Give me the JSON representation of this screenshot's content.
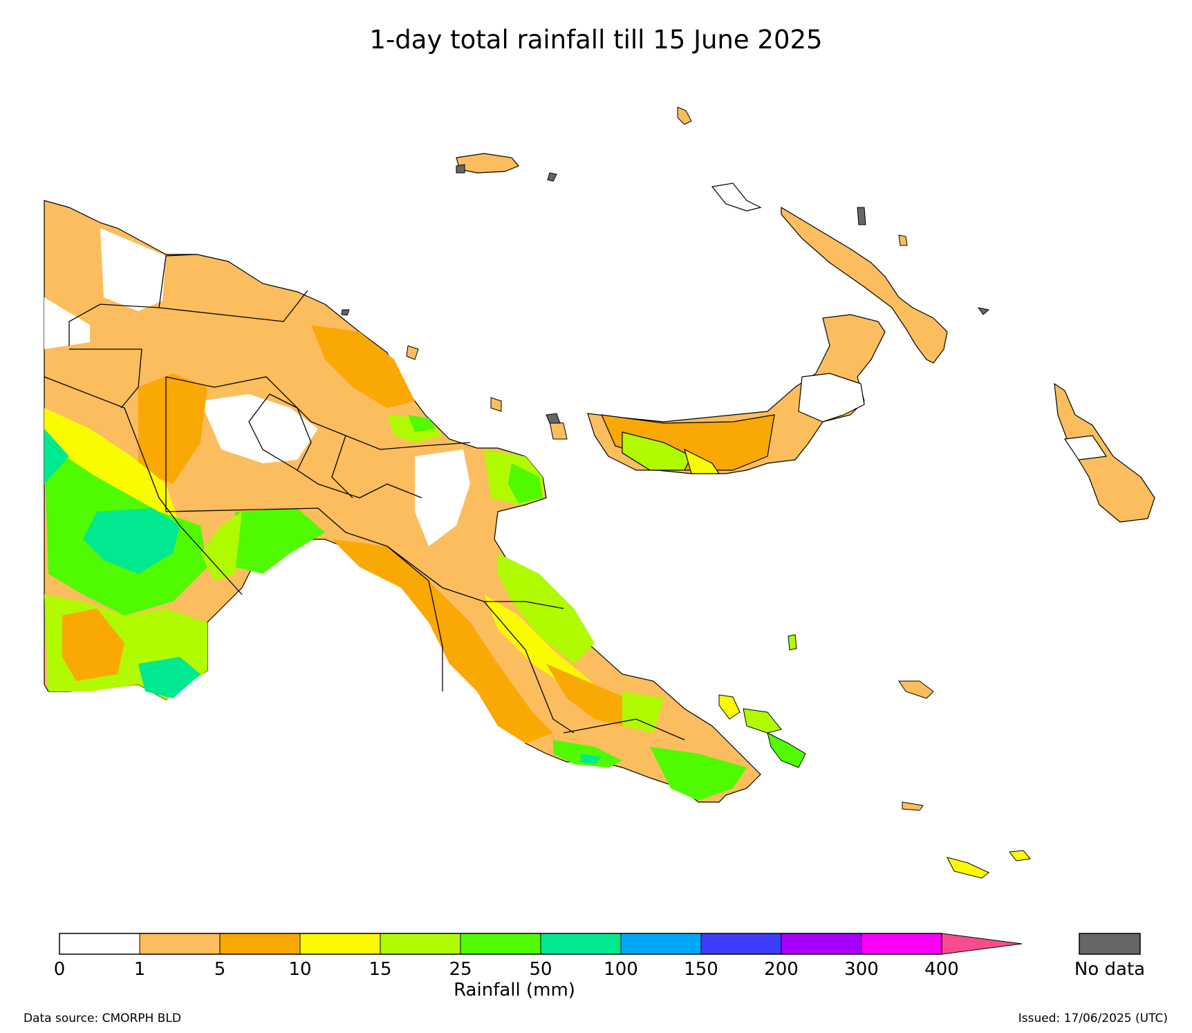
{
  "title": "1-day total rainfall till 15 June 2025",
  "legend": {
    "label": "Rainfall (mm)",
    "ticks": [
      "0",
      "1",
      "5",
      "10",
      "15",
      "25",
      "50",
      "100",
      "150",
      "200",
      "300",
      "400"
    ],
    "colors": [
      "#ffffff",
      "#fbbd5d",
      "#faa804",
      "#fafa00",
      "#b0fa02",
      "#50fa00",
      "#00e890",
      "#00a8fa",
      "#3c3cfa",
      "#a800fa",
      "#fa00fa",
      "#fa4c8c"
    ],
    "nodata_label": "No data",
    "nodata_color": "#666666"
  },
  "footer": {
    "source": "Data source: CMORPH BLD",
    "issued": "Issued: 17/06/2025 (UTC)"
  }
}
